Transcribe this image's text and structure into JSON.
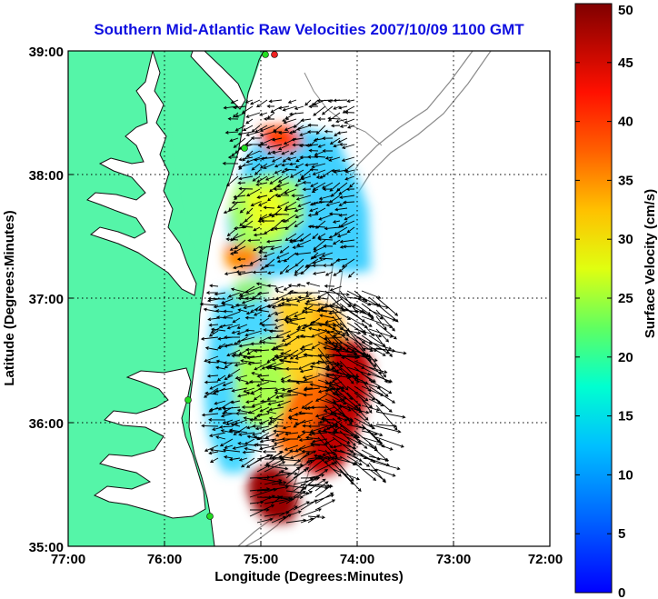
{
  "title": "Southern Mid-Atlantic Raw Velocities 2007/10/09 1100 GMT",
  "x_axis": {
    "label": "Longitude (Degrees:Minutes)",
    "ticks": [
      "77:00",
      "76:00",
      "75:00",
      "74:00",
      "73:00",
      "72:00"
    ],
    "range": [
      -77,
      -72
    ]
  },
  "y_axis": {
    "label": "Latitude (Degrees:Minutes)",
    "ticks": [
      "39:00",
      "38:00",
      "37:00",
      "36:00",
      "35:00"
    ],
    "range": [
      35,
      39
    ]
  },
  "colorbar": {
    "label": "Surface Velocity (cm/s)",
    "ticks": [
      "0",
      "5",
      "10",
      "15",
      "20",
      "25",
      "30",
      "35",
      "40",
      "45",
      "50"
    ],
    "range": [
      0,
      50
    ]
  },
  "grid": true,
  "colors": {
    "title": "#1010e0",
    "land": "#55f5a8",
    "water": "#ffffff",
    "station": "#22dd22"
  }
}
